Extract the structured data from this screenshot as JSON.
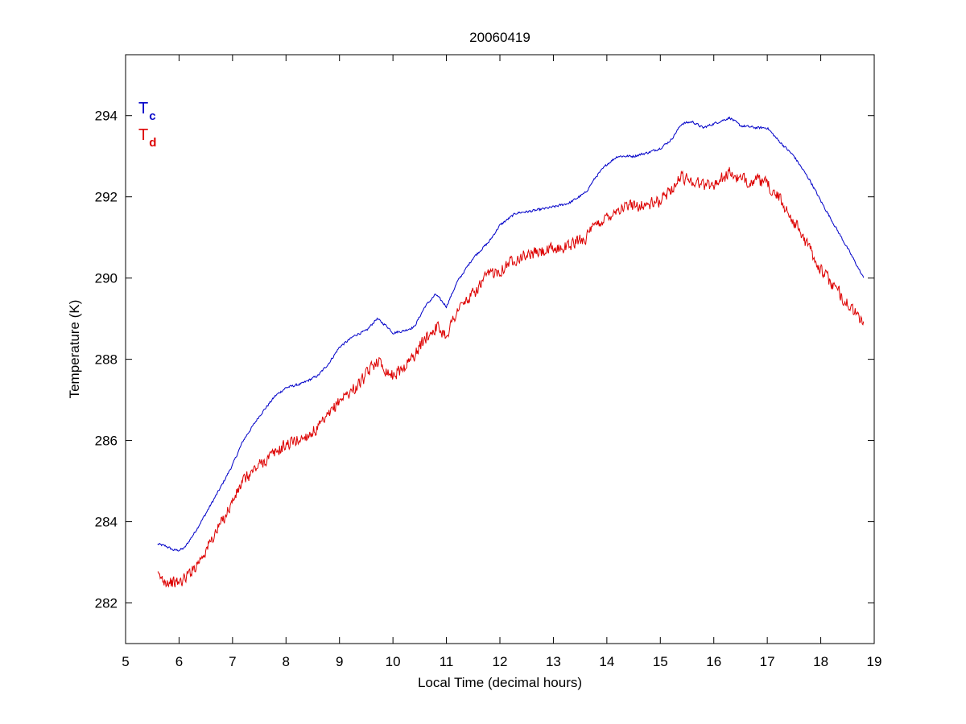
{
  "chart_data": {
    "type": "line",
    "title": "20060419",
    "xlabel": "Local Time (decimal hours)",
    "ylabel": "Temperature (K)",
    "xlim": [
      5,
      19
    ],
    "ylim": [
      281,
      295.5
    ],
    "xticks": [
      5,
      6,
      7,
      8,
      9,
      10,
      11,
      12,
      13,
      14,
      15,
      16,
      17,
      18,
      19
    ],
    "yticks": [
      282,
      284,
      286,
      288,
      290,
      292,
      294
    ],
    "grid": false,
    "legend_position": "top-left",
    "series": [
      {
        "name": "Tc",
        "legend_main": "T",
        "legend_sub": "c",
        "color": "#0000c8",
        "noise": 0.04,
        "x": [
          5.6,
          5.75,
          5.9,
          6.0,
          6.1,
          6.3,
          6.5,
          6.8,
          7.0,
          7.2,
          7.5,
          7.8,
          8.0,
          8.3,
          8.6,
          8.8,
          9.0,
          9.3,
          9.5,
          9.7,
          9.9,
          10.0,
          10.2,
          10.4,
          10.6,
          10.8,
          11.0,
          11.2,
          11.5,
          11.8,
          12.0,
          12.3,
          12.6,
          13.0,
          13.3,
          13.6,
          13.8,
          14.0,
          14.2,
          14.5,
          14.8,
          15.0,
          15.2,
          15.4,
          15.6,
          15.8,
          16.0,
          16.3,
          16.5,
          16.8,
          17.0,
          17.2,
          17.5,
          17.8,
          18.0,
          18.3,
          18.6,
          18.8
        ],
        "y": [
          283.45,
          283.4,
          283.3,
          283.3,
          283.35,
          283.75,
          284.2,
          284.9,
          285.4,
          286.0,
          286.6,
          287.1,
          287.3,
          287.4,
          287.6,
          287.9,
          288.3,
          288.6,
          288.7,
          289.0,
          288.8,
          288.65,
          288.7,
          288.8,
          289.3,
          289.6,
          289.3,
          289.9,
          290.5,
          290.9,
          291.3,
          291.6,
          291.65,
          291.75,
          291.85,
          292.1,
          292.5,
          292.8,
          293.0,
          293.0,
          293.1,
          293.2,
          293.4,
          293.8,
          293.85,
          293.7,
          293.8,
          293.95,
          293.75,
          293.7,
          293.7,
          293.4,
          293.0,
          292.4,
          291.9,
          291.2,
          290.5,
          290.0
        ]
      },
      {
        "name": "Td",
        "legend_main": "T",
        "legend_sub": "d",
        "color": "#dd0000",
        "noise": 0.2,
        "x": [
          5.6,
          5.75,
          5.9,
          6.0,
          6.1,
          6.3,
          6.5,
          6.8,
          7.0,
          7.2,
          7.5,
          7.8,
          8.0,
          8.3,
          8.6,
          8.8,
          9.0,
          9.3,
          9.5,
          9.7,
          9.9,
          10.0,
          10.2,
          10.4,
          10.6,
          10.8,
          11.0,
          11.2,
          11.5,
          11.8,
          12.0,
          12.3,
          12.6,
          13.0,
          13.3,
          13.6,
          13.8,
          14.0,
          14.2,
          14.5,
          14.8,
          15.0,
          15.2,
          15.4,
          15.6,
          15.8,
          16.0,
          16.3,
          16.5,
          16.8,
          17.0,
          17.2,
          17.5,
          17.8,
          18.0,
          18.3,
          18.6,
          18.8
        ],
        "y": [
          282.65,
          282.55,
          282.5,
          282.5,
          282.6,
          282.9,
          283.3,
          284.0,
          284.5,
          285.0,
          285.4,
          285.7,
          285.9,
          286.05,
          286.3,
          286.6,
          287.0,
          287.3,
          287.6,
          288.0,
          287.7,
          287.6,
          287.8,
          288.1,
          288.5,
          288.8,
          288.6,
          289.2,
          289.6,
          290.1,
          290.2,
          290.5,
          290.6,
          290.7,
          290.8,
          291.0,
          291.3,
          291.5,
          291.7,
          291.8,
          291.8,
          291.9,
          292.2,
          292.5,
          292.4,
          292.3,
          292.3,
          292.6,
          292.4,
          292.4,
          292.3,
          292.0,
          291.4,
          290.7,
          290.2,
          289.7,
          289.2,
          288.9
        ]
      }
    ]
  }
}
